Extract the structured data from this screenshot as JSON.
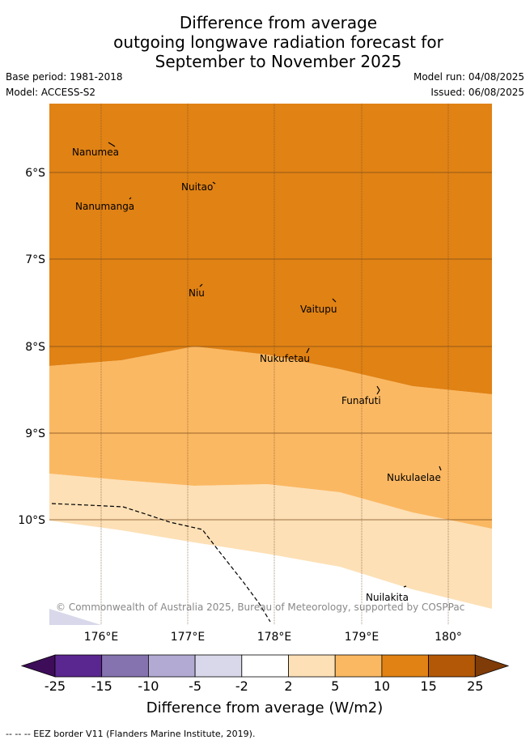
{
  "title": {
    "line1": "Difference from average",
    "line2": "outgoing longwave radiation forecast for",
    "line3": "September to November 2025"
  },
  "meta": {
    "base_period": "Base period: 1981-2018",
    "model": "Model: ACCESS-S2",
    "model_run": "Model run: 04/08/2025",
    "issued": "Issued: 06/08/2025"
  },
  "map": {
    "lat_labels": [
      "6°S",
      "7°S",
      "8°S",
      "9°S",
      "10°S"
    ],
    "lon_labels": [
      "176°E",
      "177°E",
      "178°E",
      "179°E",
      "180°"
    ],
    "places": [
      {
        "name": "Nanumea"
      },
      {
        "name": "Nuitao"
      },
      {
        "name": "Nanumanga"
      },
      {
        "name": "Niu"
      },
      {
        "name": "Vaitupu"
      },
      {
        "name": "Nukufetau"
      },
      {
        "name": "Funafuti"
      },
      {
        "name": "Nukulaelae"
      },
      {
        "name": "Nuilakita"
      }
    ],
    "copyright": "© Commonwealth of Australia 2025, Bureau of Meteorology, supported by COSPPac"
  },
  "legend": {
    "ticks": [
      "-25",
      "-15",
      "-10",
      "-5",
      "-2",
      "2",
      "5",
      "10",
      "15",
      "25"
    ],
    "colors": [
      "#5a2690",
      "#8473ae",
      "#b2aad2",
      "#d8d8ea",
      "#ffffff",
      "#fde0b6",
      "#fbb862",
      "#e08214",
      "#b35806"
    ],
    "low_color": "#3e0d59",
    "high_color": "#7f3b08",
    "label": "Difference from average (W/m2)"
  },
  "footnote": "-- -- -- EEZ border V11 (Flanders Marine Institute, 2019)."
}
